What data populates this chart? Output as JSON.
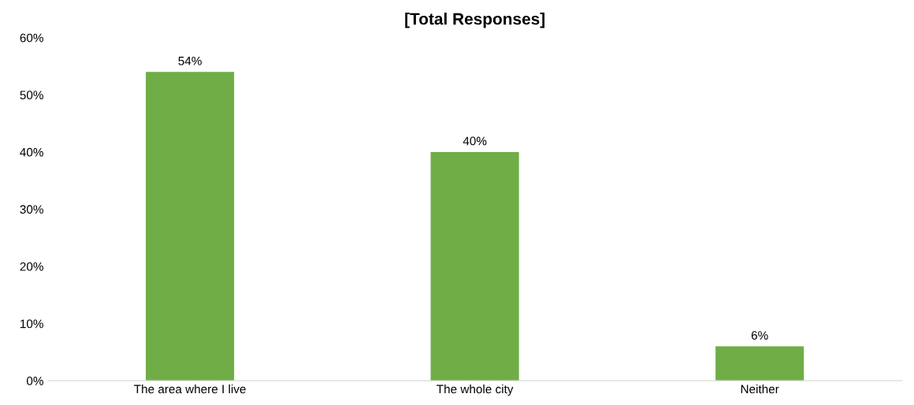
{
  "chart_data": {
    "type": "bar",
    "title": "[Total Responses]",
    "categories": [
      "The area where I live",
      "The whole city",
      "Neither"
    ],
    "values": [
      54,
      40,
      6
    ],
    "value_labels": [
      "54%",
      "40%",
      "6%"
    ],
    "color": "#70ad47",
    "ylim": [
      0,
      60
    ],
    "yticks": [
      {
        "value": 0,
        "label": "0%"
      },
      {
        "value": 10,
        "label": "10%"
      },
      {
        "value": 20,
        "label": "20%"
      },
      {
        "value": 30,
        "label": "30%"
      },
      {
        "value": 40,
        "label": "40%"
      },
      {
        "value": 50,
        "label": "50%"
      },
      {
        "value": 60,
        "label": "60%"
      }
    ],
    "grid": false,
    "legend": false
  }
}
